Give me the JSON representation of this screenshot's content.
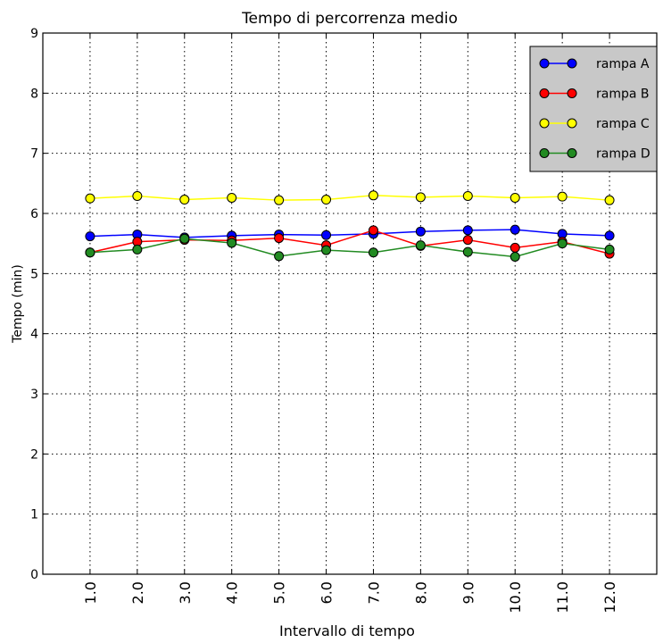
{
  "chart_data": {
    "type": "line",
    "title": "Tempo di percorrenza medio",
    "xlabel": "Intervallo di tempo",
    "ylabel": "Tempo (min)",
    "x": [
      1,
      2,
      3,
      4,
      5,
      6,
      7,
      8,
      9,
      10,
      11,
      12
    ],
    "xtick_labels": [
      "1.0",
      "2.0",
      "3.0",
      "4.0",
      "5.0",
      "6.0",
      "7.0",
      "8.0",
      "9.0",
      "10.0",
      "11.0",
      "12.0"
    ],
    "xlim": [
      0,
      13
    ],
    "ylim": [
      0,
      9
    ],
    "yticks": [
      0,
      1,
      2,
      3,
      4,
      5,
      6,
      7,
      8,
      9
    ],
    "grid": true,
    "legend_position": "top-right",
    "series": [
      {
        "name": "rampa A",
        "color": "#0000ff",
        "values": [
          5.62,
          5.65,
          5.6,
          5.63,
          5.65,
          5.64,
          5.66,
          5.7,
          5.72,
          5.73,
          5.66,
          5.63
        ]
      },
      {
        "name": "rampa B",
        "color": "#ff0000",
        "values": [
          5.35,
          5.53,
          5.56,
          5.55,
          5.59,
          5.47,
          5.72,
          5.46,
          5.56,
          5.43,
          5.53,
          5.33
        ]
      },
      {
        "name": "rampa C",
        "color": "#ffff00",
        "values": [
          6.25,
          6.29,
          6.23,
          6.26,
          6.22,
          6.23,
          6.3,
          6.27,
          6.29,
          6.26,
          6.28,
          6.22
        ]
      },
      {
        "name": "rampa D",
        "color": "#228b22",
        "values": [
          5.35,
          5.4,
          5.58,
          5.51,
          5.29,
          5.39,
          5.35,
          5.47,
          5.36,
          5.28,
          5.5,
          5.4
        ]
      }
    ]
  }
}
